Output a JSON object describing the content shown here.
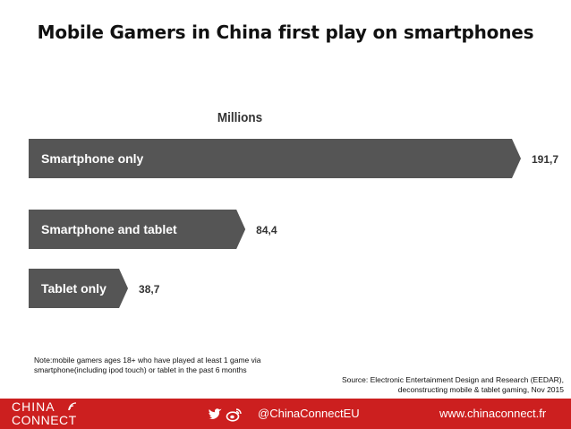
{
  "title": "Mobile Gamers in China first play on smartphones",
  "chart_data": {
    "type": "bar",
    "orientation": "horizontal",
    "title": "Mobile Gamers in China first play on smartphones",
    "unit_label": "Millions",
    "categories": [
      "Smartphone only",
      "Smartphone and tablet",
      "Tablet only"
    ],
    "values": [
      191.7,
      84.4,
      38.7
    ],
    "value_labels": [
      "191,7",
      "84,4",
      "38,7"
    ],
    "bar_color": "#555555",
    "grid": false,
    "legend": "none"
  },
  "note": "Note:mobile gamers ages 18+ who have played at least 1 game via smartphone(including ipod touch) or tablet in the past 6 months",
  "source": "Source: Electronic Entertainment Design and Research (EEDAR), deconstructing mobile & tablet gaming, Nov 2015",
  "footer": {
    "logo_line1": "CHINA",
    "logo_line2": "CONNECT",
    "handle": "@ChinaConnectEU",
    "website": "www.chinaconnect.fr",
    "icons": [
      "twitter-icon",
      "weibo-icon"
    ],
    "background": "#cc1f1f"
  }
}
